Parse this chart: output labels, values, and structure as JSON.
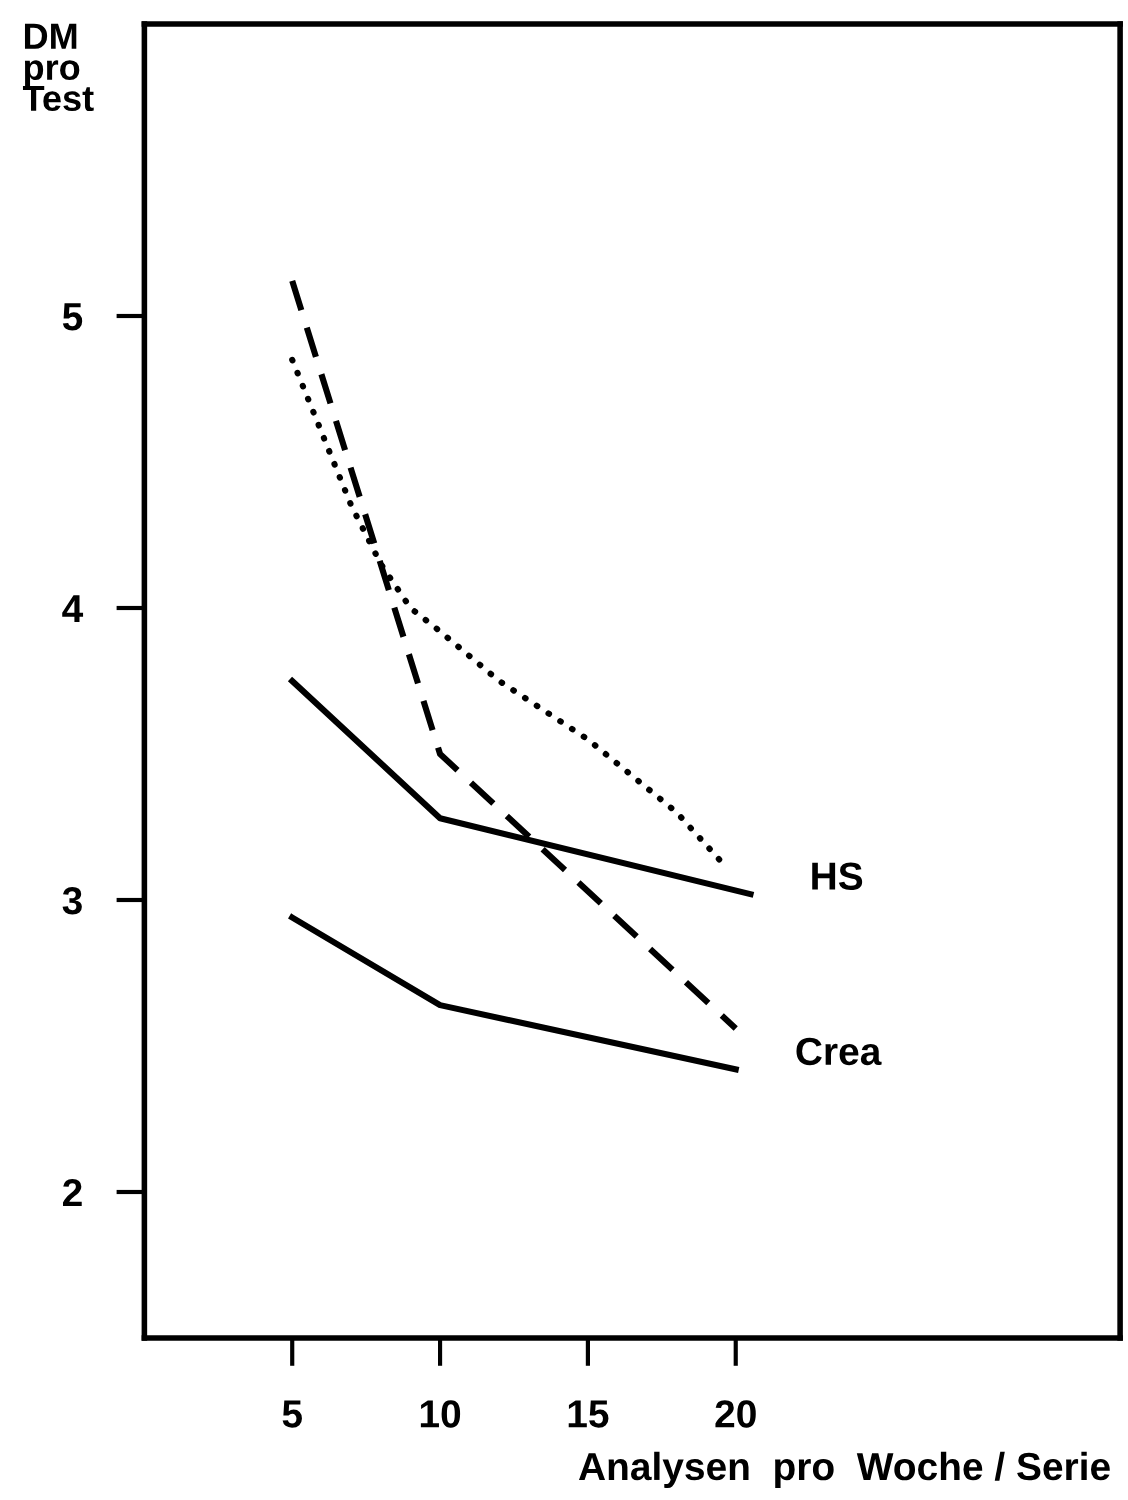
{
  "chart_data": {
    "type": "line",
    "ylabel": "DM\npro\nTest",
    "xlabel": "Analysen  pro  Woche / Serie",
    "xlim": [
      0,
      33
    ],
    "ylim": [
      1.5,
      6
    ],
    "xticks": [
      5,
      10,
      15,
      20
    ],
    "yticks": [
      2,
      3,
      4,
      5
    ],
    "grid": false,
    "legend": false,
    "marker": "none",
    "series": [
      {
        "color": "#000000",
        "line_style": "dashed",
        "x": [
          5,
          10,
          20
        ],
        "values": [
          5.12,
          3.5,
          2.56
        ]
      },
      {
        "color": "#000000",
        "line_style": "dotted",
        "x": [
          5,
          6,
          7,
          8,
          9,
          10,
          12,
          15,
          18,
          19.7
        ],
        "values": [
          4.85,
          4.6,
          4.35,
          4.15,
          4.0,
          3.92,
          3.75,
          3.55,
          3.3,
          3.11
        ]
      },
      {
        "name": "HS",
        "color": "#000000",
        "line_style": "solid",
        "x": [
          5,
          10,
          20.5
        ],
        "values": [
          3.75,
          3.28,
          3.02
        ]
      },
      {
        "name": "Crea",
        "color": "#000000",
        "line_style": "solid",
        "x": [
          5,
          10,
          20
        ],
        "values": [
          2.94,
          2.64,
          2.42
        ]
      }
    ]
  }
}
